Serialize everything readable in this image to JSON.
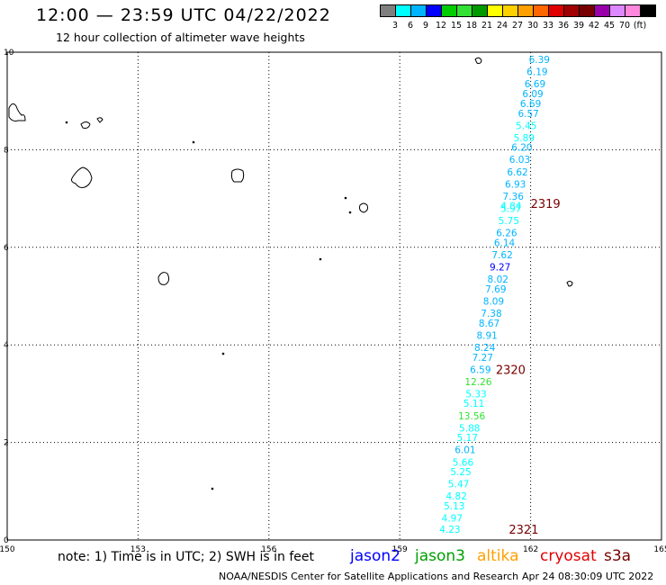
{
  "header": {
    "title": "12:00 — 23:59 UTC 04/22/2022",
    "subtitle": "12 hour collection of altimeter wave heights"
  },
  "legend": {
    "colors": [
      "#7f7f7f",
      "#00ffff",
      "#00b4ff",
      "#0000ff",
      "#00cc00",
      "#33e033",
      "#009900",
      "#ffff00",
      "#ffd000",
      "#ffa000",
      "#ff6600",
      "#e00000",
      "#a00000",
      "#770000",
      "#9900aa",
      "#dd88ff",
      "#ff88dd",
      "#000000"
    ],
    "labels": [
      "3",
      "6",
      "9",
      "12",
      "15",
      "18",
      "21",
      "24",
      "27",
      "30",
      "33",
      "36",
      "39",
      "42",
      "45",
      "70",
      "(ft)"
    ]
  },
  "map": {
    "x_ticks": [
      "150",
      "153",
      "156",
      "159",
      "162",
      "165"
    ],
    "y_ticks": [
      "10",
      "8",
      "6",
      "4",
      "2",
      "0"
    ],
    "pass_labels": [
      {
        "text": "2319",
        "lat": 6.9,
        "lon": 162.0
      },
      {
        "text": "2320",
        "lat": 3.5,
        "lon": 161.2
      },
      {
        "text": "2321",
        "lat": 0.22,
        "lon": 161.5
      }
    ],
    "track_readings": [
      {
        "lat": 9.85,
        "lon": 162.2,
        "text": "6.39",
        "color": "#00b4ff"
      },
      {
        "lat": 9.6,
        "lon": 162.15,
        "text": "6.19",
        "color": "#00b4ff"
      },
      {
        "lat": 9.35,
        "lon": 162.1,
        "text": "6.69",
        "color": "#00b4ff"
      },
      {
        "lat": 9.15,
        "lon": 162.05,
        "text": "6.09",
        "color": "#00b4ff"
      },
      {
        "lat": 8.95,
        "lon": 162.0,
        "text": "6.69",
        "color": "#00b4ff"
      },
      {
        "lat": 8.75,
        "lon": 161.95,
        "text": "6.57",
        "color": "#00b4ff"
      },
      {
        "lat": 8.5,
        "lon": 161.9,
        "text": "5.45",
        "color": "#00ffff"
      },
      {
        "lat": 8.25,
        "lon": 161.85,
        "text": "5.89",
        "color": "#00ffff"
      },
      {
        "lat": 8.05,
        "lon": 161.8,
        "text": "6.20",
        "color": "#00b4ff"
      },
      {
        "lat": 7.8,
        "lon": 161.75,
        "text": "6.03",
        "color": "#00b4ff"
      },
      {
        "lat": 7.55,
        "lon": 161.7,
        "text": "6.62",
        "color": "#00b4ff"
      },
      {
        "lat": 7.3,
        "lon": 161.65,
        "text": "6.93",
        "color": "#00b4ff"
      },
      {
        "lat": 7.05,
        "lon": 161.6,
        "text": "7.36",
        "color": "#00b4ff"
      },
      {
        "lat": 6.85,
        "lon": 161.55,
        "text": "4.84",
        "color": "#00ffff"
      },
      {
        "lat": 6.8,
        "lon": 161.55,
        "text": "5.97",
        "color": "#00ffff"
      },
      {
        "lat": 6.55,
        "lon": 161.5,
        "text": "5.75",
        "color": "#00ffff"
      },
      {
        "lat": 6.3,
        "lon": 161.45,
        "text": "6.26",
        "color": "#00b4ff"
      },
      {
        "lat": 6.1,
        "lon": 161.4,
        "text": "6.14",
        "color": "#00b4ff"
      },
      {
        "lat": 5.85,
        "lon": 161.35,
        "text": "7.62",
        "color": "#00b4ff"
      },
      {
        "lat": 5.6,
        "lon": 161.3,
        "text": "9.27",
        "color": "#0000ff"
      },
      {
        "lat": 5.35,
        "lon": 161.25,
        "text": "8.02",
        "color": "#00b4ff"
      },
      {
        "lat": 5.15,
        "lon": 161.2,
        "text": "7.69",
        "color": "#00b4ff"
      },
      {
        "lat": 4.9,
        "lon": 161.15,
        "text": "8.09",
        "color": "#00b4ff"
      },
      {
        "lat": 4.65,
        "lon": 161.1,
        "text": "7.38",
        "color": "#00b4ff"
      },
      {
        "lat": 4.45,
        "lon": 161.05,
        "text": "8.67",
        "color": "#00b4ff"
      },
      {
        "lat": 4.2,
        "lon": 161.0,
        "text": "8.91",
        "color": "#00b4ff"
      },
      {
        "lat": 3.95,
        "lon": 160.95,
        "text": "8.24",
        "color": "#00b4ff"
      },
      {
        "lat": 3.75,
        "lon": 160.9,
        "text": "7.27",
        "color": "#00b4ff"
      },
      {
        "lat": 3.5,
        "lon": 160.85,
        "text": "6.59",
        "color": "#00b4ff"
      },
      {
        "lat": 3.25,
        "lon": 160.8,
        "text": "12.26",
        "color": "#33e033"
      },
      {
        "lat": 3.0,
        "lon": 160.75,
        "text": "5.33",
        "color": "#00ffff"
      },
      {
        "lat": 2.8,
        "lon": 160.7,
        "text": "5.11",
        "color": "#00ffff"
      },
      {
        "lat": 2.55,
        "lon": 160.65,
        "text": "13.56",
        "color": "#33e033"
      },
      {
        "lat": 2.3,
        "lon": 160.6,
        "text": "5.88",
        "color": "#00ffff"
      },
      {
        "lat": 2.1,
        "lon": 160.55,
        "text": "5.17",
        "color": "#00ffff"
      },
      {
        "lat": 1.85,
        "lon": 160.5,
        "text": "6.01",
        "color": "#00b4ff"
      },
      {
        "lat": 1.6,
        "lon": 160.45,
        "text": "5.66",
        "color": "#00ffff"
      },
      {
        "lat": 1.4,
        "lon": 160.4,
        "text": "5.25",
        "color": "#00ffff"
      },
      {
        "lat": 1.15,
        "lon": 160.35,
        "text": "5.47",
        "color": "#00ffff"
      },
      {
        "lat": 0.9,
        "lon": 160.3,
        "text": "4.82",
        "color": "#00ffff"
      },
      {
        "lat": 0.7,
        "lon": 160.25,
        "text": "5.13",
        "color": "#00ffff"
      },
      {
        "lat": 0.45,
        "lon": 160.2,
        "text": "4.97",
        "color": "#00ffff"
      },
      {
        "lat": 0.22,
        "lon": 160.15,
        "text": "4.23",
        "color": "#00ffff"
      }
    ]
  },
  "footer": {
    "note": "note: 1) Time is in UTC; 2) SWH is in feet",
    "satellites": [
      {
        "name": "jason2",
        "color": "#0000ff"
      },
      {
        "name": "jason3",
        "color": "#00a000"
      },
      {
        "name": "altika",
        "color": "#ffa000"
      },
      {
        "name": "cryosat",
        "color": "#e00000"
      },
      {
        "name": "s3a",
        "color": "#770000"
      }
    ],
    "credit": "NOAA/NESDIS Center for Satellite Applications and Research",
    "timestamp": "Apr 24 08:30:09 UTC 2022"
  }
}
